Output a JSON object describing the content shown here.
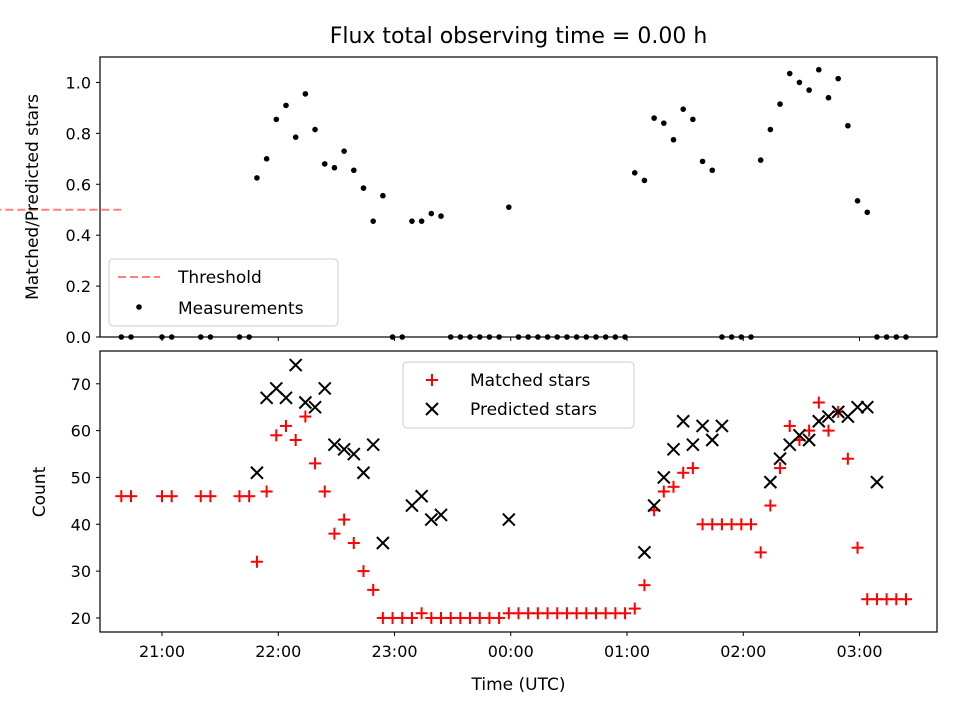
{
  "chart_data": [
    {
      "type": "scatter",
      "title": "Flux total observing time = 0.00 h",
      "xlabel": "",
      "ylabel": "Matched/Predicted stars",
      "ylim": [
        0,
        1.1
      ],
      "yticks": [
        "0.0",
        "0.2",
        "0.4",
        "0.6",
        "0.8",
        "1.0"
      ],
      "ytick_values": [
        0,
        0.2,
        0.4,
        0.6,
        0.8,
        1.0
      ],
      "legend_position": "lower-left",
      "threshold": {
        "name": "Threshold",
        "color": "#ff7f7f",
        "value": 0.5,
        "x_start": "20:39",
        "x_end": "03:20"
      },
      "series": [
        {
          "name": "Measurements",
          "color": "#000000",
          "x": [
            "20:39",
            "20:44",
            "21:00",
            "21:05",
            "21:20",
            "21:25",
            "21:40",
            "21:45",
            "21:49",
            "21:54",
            "21:59",
            "22:04",
            "22:09",
            "22:14",
            "22:19",
            "22:24",
            "22:29",
            "22:34",
            "22:39",
            "22:44",
            "22:49",
            "22:54",
            "22:59",
            "23:04",
            "23:09",
            "23:14",
            "23:19",
            "23:24",
            "23:29",
            "23:34",
            "23:39",
            "23:44",
            "23:49",
            "23:54",
            "23:59",
            "24:04",
            "24:09",
            "24:14",
            "24:19",
            "24:24",
            "24:29",
            "24:34",
            "24:39",
            "24:44",
            "24:49",
            "24:54",
            "24:59",
            "25:04",
            "25:09",
            "25:14",
            "25:19",
            "25:24",
            "25:29",
            "25:34",
            "25:39",
            "25:44",
            "25:49",
            "25:54",
            "25:59",
            "26:04",
            "26:09",
            "26:14",
            "26:19",
            "26:24",
            "26:29",
            "26:34",
            "26:39",
            "26:44",
            "26:49",
            "26:54",
            "26:59",
            "27:04",
            "27:09",
            "27:14",
            "27:19",
            "27:24"
          ],
          "y": [
            0,
            0,
            0,
            0,
            0,
            0,
            0,
            0,
            0.625,
            0.7,
            0.855,
            0.91,
            0.785,
            0.955,
            0.815,
            0.68,
            0.665,
            0.73,
            0.655,
            0.585,
            0.455,
            0.555,
            0,
            0,
            0.455,
            0.455,
            0.485,
            0.475,
            0,
            0,
            0,
            0,
            0,
            0,
            0.51,
            0,
            0,
            0,
            0,
            0,
            0,
            0,
            0,
            0,
            0,
            0,
            0,
            0.645,
            0.615,
            0.86,
            0.84,
            0.775,
            0.895,
            0.855,
            0.69,
            0.655,
            0,
            0,
            0,
            0,
            0.695,
            0.815,
            0.915,
            1.035,
            1.0,
            0.97,
            1.05,
            0.94,
            1.015,
            0.83,
            0.535,
            0.49,
            0,
            0,
            0,
            0
          ]
        }
      ]
    },
    {
      "type": "scatter",
      "title": "",
      "xlabel": "Time (UTC)",
      "ylabel": "Count",
      "ylim": [
        17,
        77
      ],
      "yticks": [
        "20",
        "30",
        "40",
        "50",
        "60",
        "70"
      ],
      "ytick_values": [
        20,
        30,
        40,
        50,
        60,
        70
      ],
      "xlim": [
        "20:28",
        "27:40"
      ],
      "xticks": [
        "21:00",
        "22:00",
        "23:00",
        "00:00",
        "01:00",
        "02:00",
        "03:00"
      ],
      "xtick_values": [
        "21:00",
        "22:00",
        "23:00",
        "24:00",
        "25:00",
        "26:00",
        "27:00"
      ],
      "legend_position": "top-center",
      "series": [
        {
          "name": "Matched stars",
          "color": "#ff0000",
          "marker": "+",
          "x": [
            "20:39",
            "20:44",
            "21:00",
            "21:05",
            "21:20",
            "21:25",
            "21:40",
            "21:45",
            "21:49",
            "21:54",
            "21:59",
            "22:04",
            "22:09",
            "22:14",
            "22:19",
            "22:24",
            "22:29",
            "22:34",
            "22:39",
            "22:44",
            "22:49",
            "22:54",
            "22:59",
            "23:04",
            "23:09",
            "23:14",
            "23:19",
            "23:24",
            "23:29",
            "23:34",
            "23:39",
            "23:44",
            "23:49",
            "23:54",
            "23:59",
            "24:04",
            "24:09",
            "24:14",
            "24:19",
            "24:24",
            "24:29",
            "24:34",
            "24:39",
            "24:44",
            "24:49",
            "24:54",
            "24:59",
            "25:04",
            "25:09",
            "25:14",
            "25:19",
            "25:24",
            "25:29",
            "25:34",
            "25:39",
            "25:44",
            "25:49",
            "25:54",
            "25:59",
            "26:04",
            "26:09",
            "26:14",
            "26:19",
            "26:24",
            "26:29",
            "26:34",
            "26:39",
            "26:44",
            "26:49",
            "26:54",
            "26:59",
            "27:04",
            "27:09",
            "27:14",
            "27:19",
            "27:24"
          ],
          "y": [
            46,
            46,
            46,
            46,
            46,
            46,
            46,
            46,
            32,
            47,
            59,
            61,
            58,
            63,
            53,
            47,
            38,
            41,
            36,
            30,
            26,
            20,
            20,
            20,
            20,
            21,
            20,
            20,
            20,
            20,
            20,
            20,
            20,
            20,
            21,
            21,
            21,
            21,
            21,
            21,
            21,
            21,
            21,
            21,
            21,
            21,
            21,
            22,
            27,
            43,
            47,
            48,
            51,
            52,
            40,
            40,
            40,
            40,
            40,
            40,
            34,
            44,
            52,
            61,
            58,
            60,
            66,
            60,
            64,
            54,
            35,
            24,
            24,
            24,
            24,
            24
          ]
        },
        {
          "name": "Predicted stars",
          "color": "#000000",
          "marker": "x",
          "x": [
            "21:49",
            "21:54",
            "21:59",
            "22:04",
            "22:09",
            "22:14",
            "22:19",
            "22:24",
            "22:29",
            "22:34",
            "22:39",
            "22:44",
            "22:49",
            "22:54",
            "23:09",
            "23:14",
            "23:19",
            "23:24",
            "23:59",
            "25:09",
            "25:14",
            "25:19",
            "25:24",
            "25:29",
            "25:34",
            "25:39",
            "25:44",
            "25:49",
            "26:14",
            "26:19",
            "26:24",
            "26:29",
            "26:34",
            "26:39",
            "26:44",
            "26:49",
            "26:54",
            "26:59",
            "27:04",
            "27:09"
          ],
          "y": [
            51,
            67,
            69,
            67,
            74,
            66,
            65,
            69,
            57,
            56,
            55,
            51,
            57,
            36,
            44,
            46,
            41,
            42,
            41,
            34,
            44,
            50,
            56,
            62,
            57,
            61,
            58,
            61,
            49,
            54,
            57,
            59,
            58,
            62,
            63,
            64,
            63,
            65,
            65,
            49
          ]
        }
      ]
    }
  ]
}
